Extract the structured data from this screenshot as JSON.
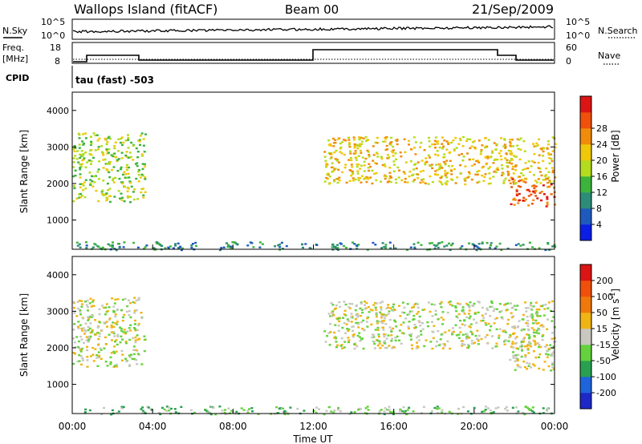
{
  "header": {
    "title": "Wallops Island (fitACF)",
    "beam": "Beam 00",
    "date": "21/Sep/2009"
  },
  "top_panels": {
    "nsky_label": "N.Sky",
    "nsky_ticks": [
      "10^5",
      "10^0"
    ],
    "nsearch_label": "N.Search",
    "nsearch_ticks": [
      "10^5",
      "10^0"
    ],
    "freq_label": "Freq.",
    "freq_unit": "[MHz]",
    "freq_ticks": [
      "18",
      "8"
    ],
    "nave_label": "Nave",
    "nave_ticks": [
      "60",
      "0"
    ],
    "cpid_label": "CPID",
    "cpid_text": "tau (fast) -503"
  },
  "chart_data": [
    {
      "type": "heatmap",
      "name_key": "power",
      "ylabel": "Slant Range [km]",
      "yticks": [
        1000,
        2000,
        3000,
        4000
      ],
      "ylim": [
        200,
        4500
      ],
      "xlim": [
        0,
        24
      ],
      "colorbar": {
        "label": "Power [dB]",
        "ticks": [
          "4",
          "8",
          "12",
          "16",
          "20",
          "24",
          "28"
        ],
        "colors": [
          "#0a1ee6",
          "#1e5abe",
          "#2d8c78",
          "#3cb43c",
          "#b4dc1e",
          "#f0c80a",
          "#f08c0a",
          "#f0500a",
          "#dc1414"
        ]
      },
      "regions": [
        {
          "t": [
            0.0,
            3.6
          ],
          "r": [
            1500,
            3400
          ],
          "level": 4
        },
        {
          "t": [
            12.5,
            24.0
          ],
          "r": [
            2000,
            3300
          ],
          "level": 5
        },
        {
          "t": [
            21.7,
            24.0
          ],
          "r": [
            1400,
            2200
          ],
          "level": 7
        },
        {
          "t": [
            0.0,
            24.0
          ],
          "r": [
            200,
            420
          ],
          "level": 2
        }
      ]
    },
    {
      "type": "heatmap",
      "name_key": "velocity",
      "ylabel": "Slant Range [km]",
      "yticks": [
        1000,
        2000,
        3000,
        4000
      ],
      "ylim": [
        200,
        4500
      ],
      "xlim": [
        0,
        24
      ],
      "xlabel": "Time UT",
      "xticks": [
        "00:00",
        "04:00",
        "08:00",
        "12:00",
        "16:00",
        "20:00",
        "00:00"
      ],
      "colorbar": {
        "label": "Velocity [m s",
        "label_sup": "-1",
        "label_end": "]",
        "ticks": [
          "200",
          "100",
          "50",
          "15",
          "-15",
          "-50",
          "-100",
          "-200"
        ],
        "colors": [
          "#1e28c8",
          "#1e64dc",
          "#28a050",
          "#64d23c",
          "#c8c8c0",
          "#f0b414",
          "#f0780a",
          "#f0500a",
          "#dc1414"
        ]
      },
      "regions": [
        {
          "t": [
            0.0,
            3.6
          ],
          "r": [
            1500,
            3400
          ],
          "level": 4
        },
        {
          "t": [
            12.5,
            24.0
          ],
          "r": [
            2000,
            3300
          ],
          "level": 4
        },
        {
          "t": [
            21.7,
            24.0
          ],
          "r": [
            1400,
            2200
          ],
          "level": 4
        },
        {
          "t": [
            0.0,
            24.0
          ],
          "r": [
            200,
            420
          ],
          "level": 3
        }
      ]
    }
  ]
}
